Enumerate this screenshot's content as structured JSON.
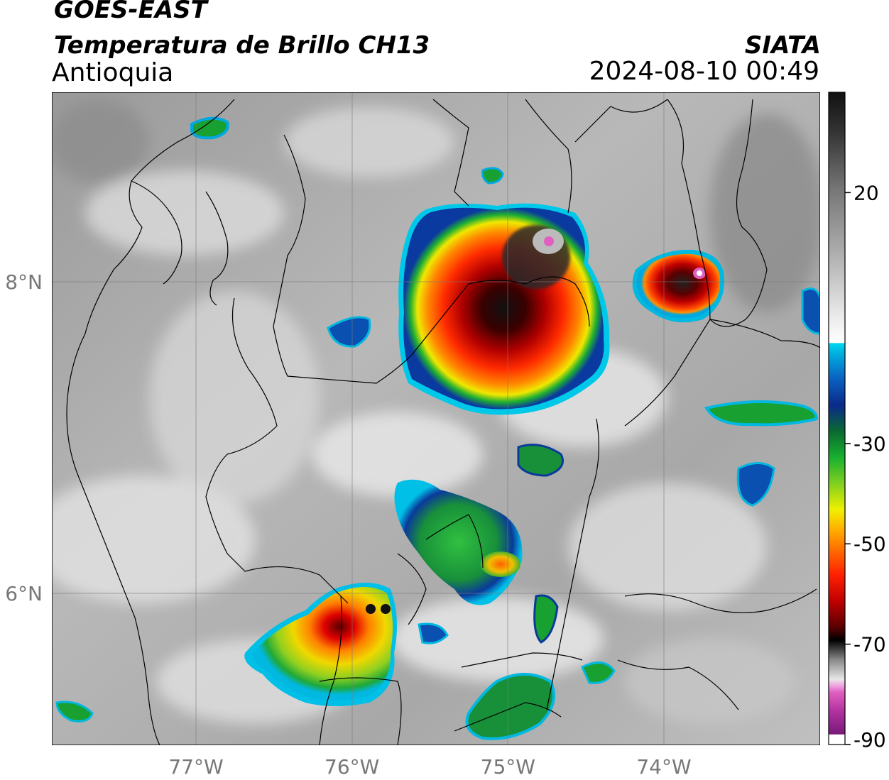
{
  "header": {
    "satellite": "GOES-EAST",
    "product": "Temperatura de Brillo CH13",
    "region": "Antioquia",
    "source": "SIATA",
    "datetime": "2024-08-10 00:49"
  },
  "map": {
    "lon_range": [
      -77.95,
      -73.0
    ],
    "lat_range": [
      5.5,
      9.2
    ],
    "lat_ticks": [
      {
        "value": 8,
        "label": "8°N"
      },
      {
        "value": 6,
        "label": "6°N"
      }
    ],
    "lon_ticks": [
      {
        "value": -77,
        "label": "77°W"
      },
      {
        "value": -76,
        "label": "76°W"
      },
      {
        "value": -75,
        "label": "75°W"
      },
      {
        "value": -74,
        "label": "74°W"
      }
    ],
    "grid": true
  },
  "colorbar": {
    "range": [
      -90,
      40
    ],
    "ticks": [
      {
        "value": 20,
        "label": "20"
      },
      {
        "value": -30,
        "label": "-30"
      },
      {
        "value": -50,
        "label": "-50"
      },
      {
        "value": -70,
        "label": "-70"
      },
      {
        "value": -90,
        "label": "-90"
      }
    ],
    "colors": {
      "warm_top": "#111111",
      "warm_mid": "#888888",
      "warm_low": "#f5f5f5",
      "cyan": "#00c8e8",
      "blue": "#0a2a8a",
      "green": "#18a838",
      "yellow": "#f0f000",
      "orange": "#ff8000",
      "red": "#e00000",
      "dark_red": "#5a0000",
      "black": "#000000",
      "pink": "#e060c0",
      "purple": "#8a1a8a"
    }
  }
}
